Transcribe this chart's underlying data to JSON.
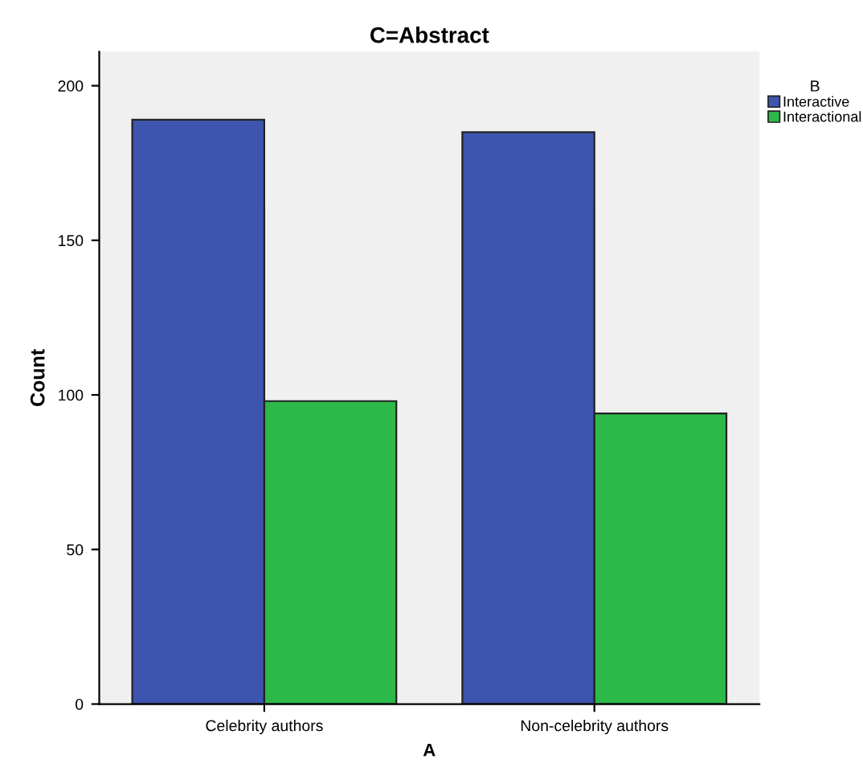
{
  "chart_data": {
    "type": "bar",
    "title": "C=Abstract",
    "xlabel": "A",
    "ylabel": "Count",
    "legend_title": "B",
    "categories": [
      "Celebrity authors",
      "Non-celebrity authors"
    ],
    "series": [
      {
        "name": "Interactive",
        "color": "#3d55ae",
        "values": [
          189,
          185
        ]
      },
      {
        "name": "Interactional",
        "color": "#2db84a",
        "values": [
          98,
          94
        ]
      }
    ],
    "ylim": [
      0,
      211
    ],
    "yticks": [
      0,
      50,
      100,
      150,
      200
    ],
    "grid": false,
    "legend": "right"
  }
}
